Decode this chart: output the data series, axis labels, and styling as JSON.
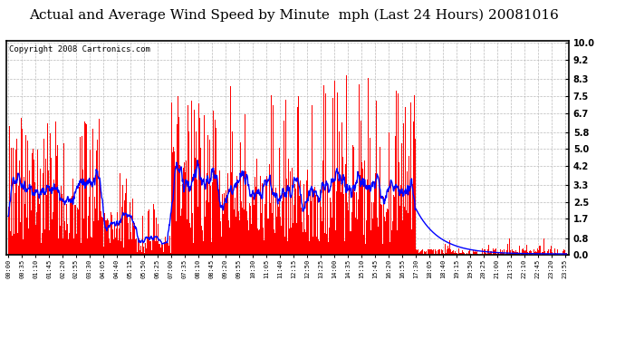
{
  "title": "Actual and Average Wind Speed by Minute  mph (Last 24 Hours) 20081016",
  "copyright": "Copyright 2008 Cartronics.com",
  "yticks": [
    0.0,
    0.8,
    1.7,
    2.5,
    3.3,
    4.2,
    5.0,
    5.8,
    6.7,
    7.5,
    8.3,
    9.2,
    10.0
  ],
  "ymax": 10.0,
  "ymin": 0.0,
  "bar_color": "#ff0000",
  "line_color": "#0000ff",
  "background_color": "#ffffff",
  "grid_color": "#bbbbbb",
  "title_fontsize": 11,
  "copyright_fontsize": 6.5,
  "xtick_interval_min": 35,
  "total_minutes": 1440,
  "seed": 42
}
